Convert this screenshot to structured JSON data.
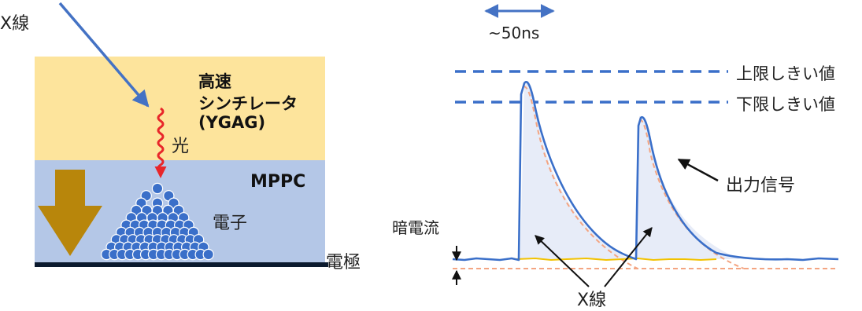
{
  "left": {
    "xray_label": "X線",
    "scintillator_lines": [
      "高速",
      "シンチレータ",
      "(YGAG)"
    ],
    "light_label": "光",
    "mppc_label": "MPPC",
    "electron_label": "電子",
    "electrode_label": "電極"
  },
  "right": {
    "pulse_width_label": "~50ns",
    "upper_threshold_label": "上限しきい値",
    "lower_threshold_label": "下限しきい値",
    "output_signal_label": "出力信号",
    "dark_current_label": "暗電流",
    "xray_label": "X線"
  },
  "colors": {
    "scintillator": "#fde49c",
    "mppc": "#b4c7e7",
    "electrode": "#0b1a2e",
    "xray_arrow": "#4472c4",
    "light_wave": "#e8262a",
    "down_arrow": "#b8860b",
    "electron": "#3a6fc9",
    "threshold_line": "#3a6fc9",
    "signal": "#3a6fc9",
    "pulse_fill": "#e7ecf8",
    "dark_dashed": "#f4a582",
    "dark_current": "#f2c200"
  }
}
